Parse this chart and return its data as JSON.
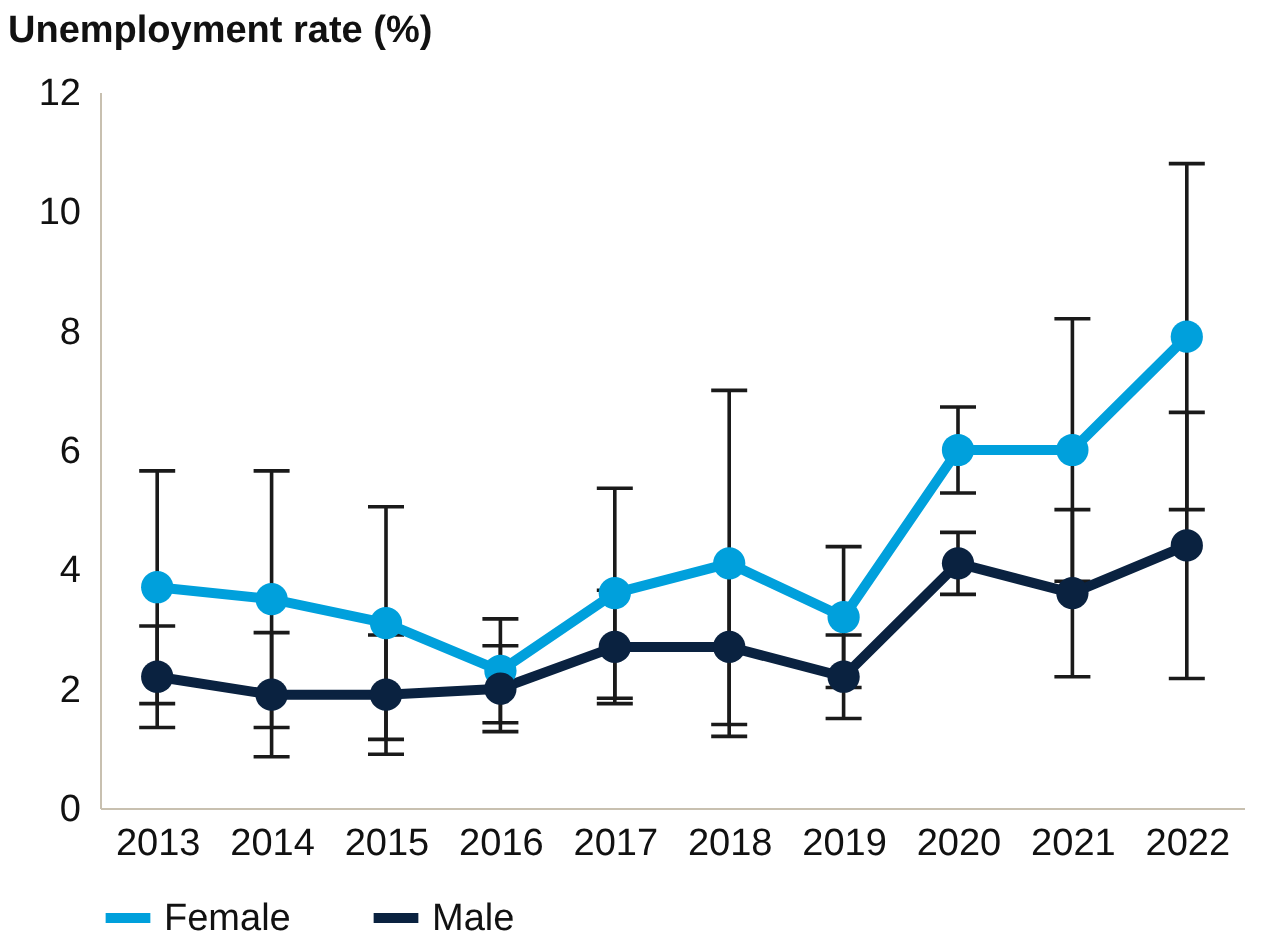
{
  "chart_data": {
    "type": "line",
    "ylabel": "Unemployment rate (%)",
    "categories": [
      "2013",
      "2014",
      "2015",
      "2016",
      "2017",
      "2018",
      "2019",
      "2020",
      "2021",
      "2022"
    ],
    "series": [
      {
        "name": "Female",
        "color": "#00a0dc",
        "values": [
          3.7,
          3.5,
          3.1,
          2.3,
          3.6,
          4.1,
          3.2,
          6.0,
          6.0,
          7.9
        ],
        "errors": [
          1.95,
          2.15,
          1.95,
          0.87,
          1.76,
          2.9,
          1.18,
          0.72,
          2.2,
          2.9
        ]
      },
      {
        "name": "Male",
        "color": "#0a2240",
        "values": [
          2.2,
          1.9,
          1.9,
          2.0,
          2.7,
          2.7,
          2.2,
          4.1,
          3.6,
          4.4
        ],
        "errors": [
          0.85,
          1.04,
          1.0,
          0.72,
          0.95,
          1.3,
          0.7,
          0.52,
          1.4,
          2.23
        ]
      }
    ],
    "ylim": [
      0,
      12
    ],
    "yticks": [
      0,
      2,
      4,
      6,
      8,
      10,
      12
    ],
    "grid": false,
    "legend": "bottom",
    "marker": "circle",
    "line_style": "solid"
  }
}
